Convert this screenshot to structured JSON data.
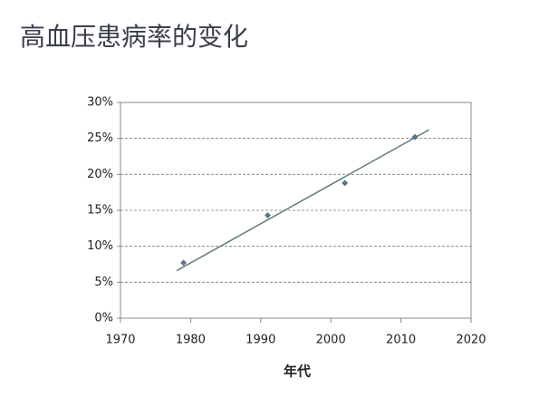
{
  "chart_data": {
    "type": "scatter",
    "title": "高血压患病率的变化",
    "x_label": "年代",
    "x": [
      1979,
      1991,
      2002,
      2012
    ],
    "values": [
      7.7,
      14.3,
      18.8,
      25.2
    ],
    "color": "#5b7588",
    "trendline": {
      "x": [
        1978,
        2014
      ],
      "values": [
        6.6,
        26.2
      ],
      "color": "#5e7c78"
    },
    "xlim": [
      1970,
      2020
    ],
    "xticks": [
      1970,
      1980,
      1990,
      2000,
      2010,
      2020
    ],
    "ylim": [
      0,
      30
    ],
    "yticks": [
      {
        "value": 0,
        "label": "0%"
      },
      {
        "value": 5,
        "label": "5%"
      },
      {
        "value": 10,
        "label": "10%"
      },
      {
        "value": 15,
        "label": "15%"
      },
      {
        "value": 20,
        "label": "20%"
      },
      {
        "value": 25,
        "label": "25%"
      },
      {
        "value": 30,
        "label": "30%"
      }
    ],
    "grid": true
  }
}
